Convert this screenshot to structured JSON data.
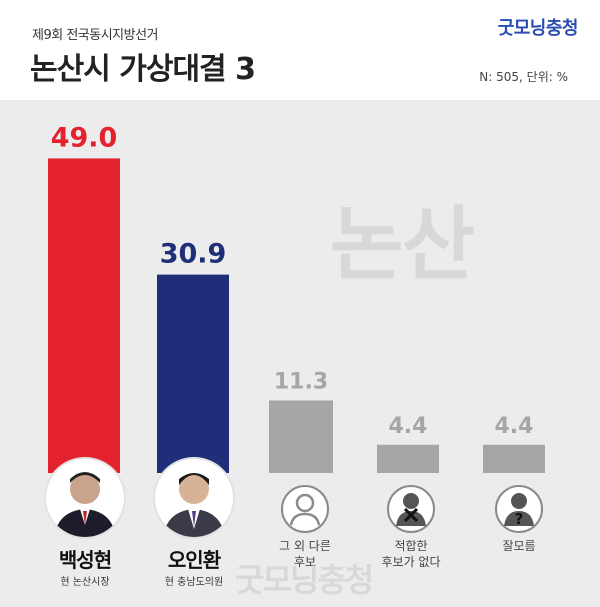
{
  "header": {
    "subtitle": "제9회 전국동시지방선거",
    "title": "논산시 가상대결 3",
    "brand": "굿모닝충청",
    "sample_note": "N: 505, 단위: %"
  },
  "watermarks": {
    "center": "논산",
    "bottom": "굿모닝충청"
  },
  "candidates": [
    {
      "name": "백성현",
      "role": "현 논산시장",
      "color": "#e4222e"
    },
    {
      "name": "오인환",
      "role": "현 충남도의원",
      "color": "#1e2e78"
    }
  ],
  "options": [
    {
      "label": "그 외 다른\n후보",
      "icon": "person-icon"
    },
    {
      "label": "적합한\n후보가 없다",
      "icon": "person-x-icon"
    },
    {
      "label": "잘모름",
      "icon": "person-question-icon"
    }
  ],
  "chart_data": {
    "type": "bar",
    "categories": [
      "백성현",
      "오인환",
      "그 외 다른 후보",
      "적합한 후보가 없다",
      "잘모름"
    ],
    "values": [
      49.0,
      30.9,
      11.3,
      4.4,
      4.4
    ],
    "value_labels": [
      "49.0",
      "30.9",
      "11.3",
      "4.4",
      "4.4"
    ],
    "colors": [
      "#e4222e",
      "#1e2e78",
      "#a6a6a6",
      "#a6a6a6",
      "#a6a6a6"
    ],
    "value_label_colors": [
      "#e4222e",
      "#1e2e78",
      "#a6a6a6",
      "#a6a6a6",
      "#a6a6a6"
    ],
    "title": "논산시 가상대결 3",
    "ylim": [
      0,
      50
    ],
    "grid": false,
    "legend": "none"
  }
}
